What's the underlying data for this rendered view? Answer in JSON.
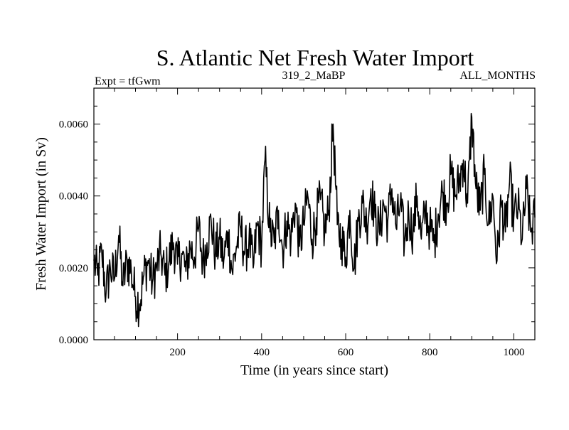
{
  "colors": {
    "background": "#ffffff",
    "line": "#000000"
  },
  "chart_data": {
    "type": "line",
    "title": "S. Atlantic Net Fresh Water Import",
    "subtitle_left": "Expt = tfGwm",
    "subtitle_center": "319_2_MaBP",
    "subtitle_right": "ALL_MONTHS",
    "xlabel": "Time (in years since start)",
    "ylabel": "Fresh Water Import (in Sv)",
    "xlim": [
      1,
      1050
    ],
    "ylim": [
      0.0,
      0.007
    ],
    "x_ticks": [
      {
        "value": 200,
        "label": "200"
      },
      {
        "value": 400,
        "label": "400"
      },
      {
        "value": 600,
        "label": "600"
      },
      {
        "value": 800,
        "label": "800"
      },
      {
        "value": 1000,
        "label": "1000"
      }
    ],
    "y_ticks": [
      {
        "value": 0.0,
        "label": "0.0000"
      },
      {
        "value": 0.002,
        "label": "0.0020"
      },
      {
        "value": 0.004,
        "label": "0.0040"
      },
      {
        "value": 0.006,
        "label": "0.0060"
      }
    ],
    "grid": false,
    "series": [
      {
        "name": "Net Fresh Water Import",
        "x": [
          1,
          10,
          20,
          30,
          40,
          50,
          60,
          70,
          80,
          90,
          100,
          110,
          120,
          130,
          140,
          150,
          160,
          170,
          180,
          190,
          200,
          210,
          220,
          230,
          240,
          250,
          260,
          270,
          280,
          290,
          300,
          310,
          320,
          330,
          340,
          350,
          360,
          370,
          380,
          390,
          400,
          408,
          420,
          430,
          440,
          450,
          460,
          470,
          480,
          490,
          500,
          510,
          520,
          530,
          540,
          550,
          560,
          570,
          580,
          590,
          600,
          610,
          620,
          630,
          640,
          650,
          660,
          670,
          680,
          690,
          700,
          710,
          720,
          730,
          740,
          750,
          760,
          770,
          780,
          790,
          800,
          810,
          820,
          830,
          840,
          850,
          860,
          870,
          880,
          890,
          900,
          910,
          920,
          930,
          940,
          950,
          960,
          970,
          980,
          990,
          1000,
          1010,
          1020,
          1030,
          1040,
          1050
        ],
        "y": [
          0.0022,
          0.0018,
          0.0024,
          0.0013,
          0.002,
          0.0017,
          0.0029,
          0.0015,
          0.0022,
          0.0019,
          0.0012,
          0.001,
          0.0018,
          0.0022,
          0.0016,
          0.002,
          0.0024,
          0.0018,
          0.0022,
          0.0027,
          0.0021,
          0.0024,
          0.0019,
          0.0026,
          0.0023,
          0.0031,
          0.0022,
          0.0027,
          0.0033,
          0.0024,
          0.0028,
          0.0022,
          0.003,
          0.0019,
          0.0026,
          0.0031,
          0.0024,
          0.0028,
          0.002,
          0.0032,
          0.0026,
          0.005,
          0.003,
          0.0027,
          0.0036,
          0.0025,
          0.0033,
          0.0028,
          0.0038,
          0.0026,
          0.0032,
          0.004,
          0.0028,
          0.0034,
          0.0039,
          0.003,
          0.0036,
          0.006,
          0.0032,
          0.0028,
          0.0023,
          0.0036,
          0.002,
          0.0033,
          0.0038,
          0.0032,
          0.0042,
          0.0034,
          0.003,
          0.0038,
          0.0033,
          0.0042,
          0.0031,
          0.0038,
          0.0027,
          0.0035,
          0.003,
          0.004,
          0.0028,
          0.0036,
          0.0031,
          0.0027,
          0.0035,
          0.0041,
          0.0038,
          0.0046,
          0.004,
          0.0044,
          0.005,
          0.0038,
          0.0062,
          0.0042,
          0.0036,
          0.0046,
          0.0032,
          0.004,
          0.0022,
          0.0038,
          0.003,
          0.0044,
          0.0034,
          0.0037,
          0.0028,
          0.0042,
          0.003,
          0.0034
        ]
      }
    ]
  }
}
